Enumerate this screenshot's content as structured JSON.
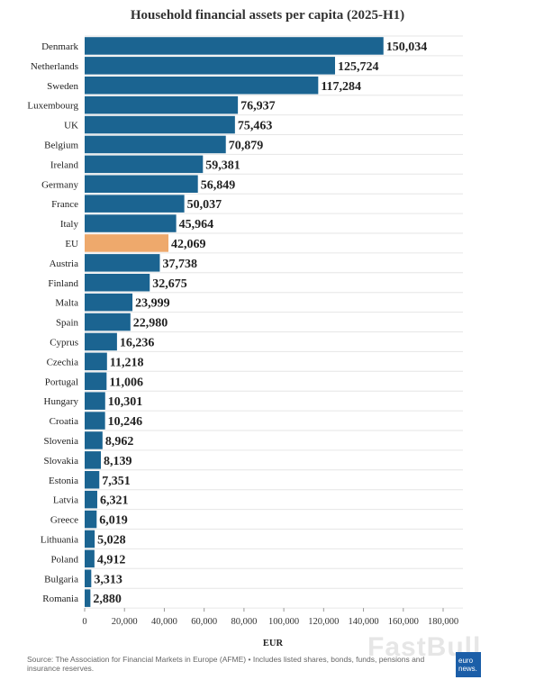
{
  "chart_data": {
    "type": "bar",
    "orientation": "horizontal",
    "title": "Household financial assets per capita (2025-H1)",
    "xlabel": "EUR",
    "ylabel": "",
    "xlim": [
      0,
      180000
    ],
    "ticks": [
      0,
      20000,
      40000,
      60000,
      80000,
      100000,
      120000,
      140000,
      160000,
      180000
    ],
    "tick_labels": [
      "0",
      "20,000",
      "40,000",
      "60,000",
      "80,000",
      "100,000",
      "120,000",
      "140,000",
      "160,000",
      "180,000"
    ],
    "grid": true,
    "categories": [
      "Denmark",
      "Netherlands",
      "Sweden",
      "Luxembourg",
      "UK",
      "Belgium",
      "Ireland",
      "Germany",
      "France",
      "Italy",
      "EU",
      "Austria",
      "Finland",
      "Malta",
      "Spain",
      "Cyprus",
      "Czechia",
      "Portugal",
      "Hungary",
      "Croatia",
      "Slovenia",
      "Slovakia",
      "Estonia",
      "Latvia",
      "Greece",
      "Lithuania",
      "Poland",
      "Bulgaria",
      "Romania"
    ],
    "values": [
      150034,
      125724,
      117284,
      76937,
      75463,
      70879,
      59381,
      56849,
      50037,
      45964,
      42069,
      37738,
      32675,
      23999,
      22980,
      16236,
      11218,
      11006,
      10301,
      10246,
      8962,
      8139,
      7351,
      6321,
      6019,
      5028,
      4912,
      3313,
      2880
    ],
    "value_labels": [
      "150,034",
      "125,724",
      "117,284",
      "76,937",
      "75,463",
      "70,879",
      "59,381",
      "56,849",
      "50,037",
      "45,964",
      "42,069",
      "37,738",
      "32,675",
      "23,999",
      "22,980",
      "16,236",
      "11,218",
      "11,006",
      "10,301",
      "10,246",
      "8,962",
      "8,139",
      "7,351",
      "6,321",
      "6,019",
      "5,028",
      "4,912",
      "3,313",
      "2,880"
    ],
    "highlight": "EU",
    "colors": {
      "bar": "#1b6491",
      "highlight": "#eea96c",
      "grid": "#e6e6e6"
    }
  },
  "source": "Source: The Association for Financial Markets in Europe (AFME) • Includes listed shares, bonds, funds, pensions and insurance reserves.",
  "watermark": "FastBull",
  "logo": {
    "line1": "euro",
    "line2": "news."
  }
}
